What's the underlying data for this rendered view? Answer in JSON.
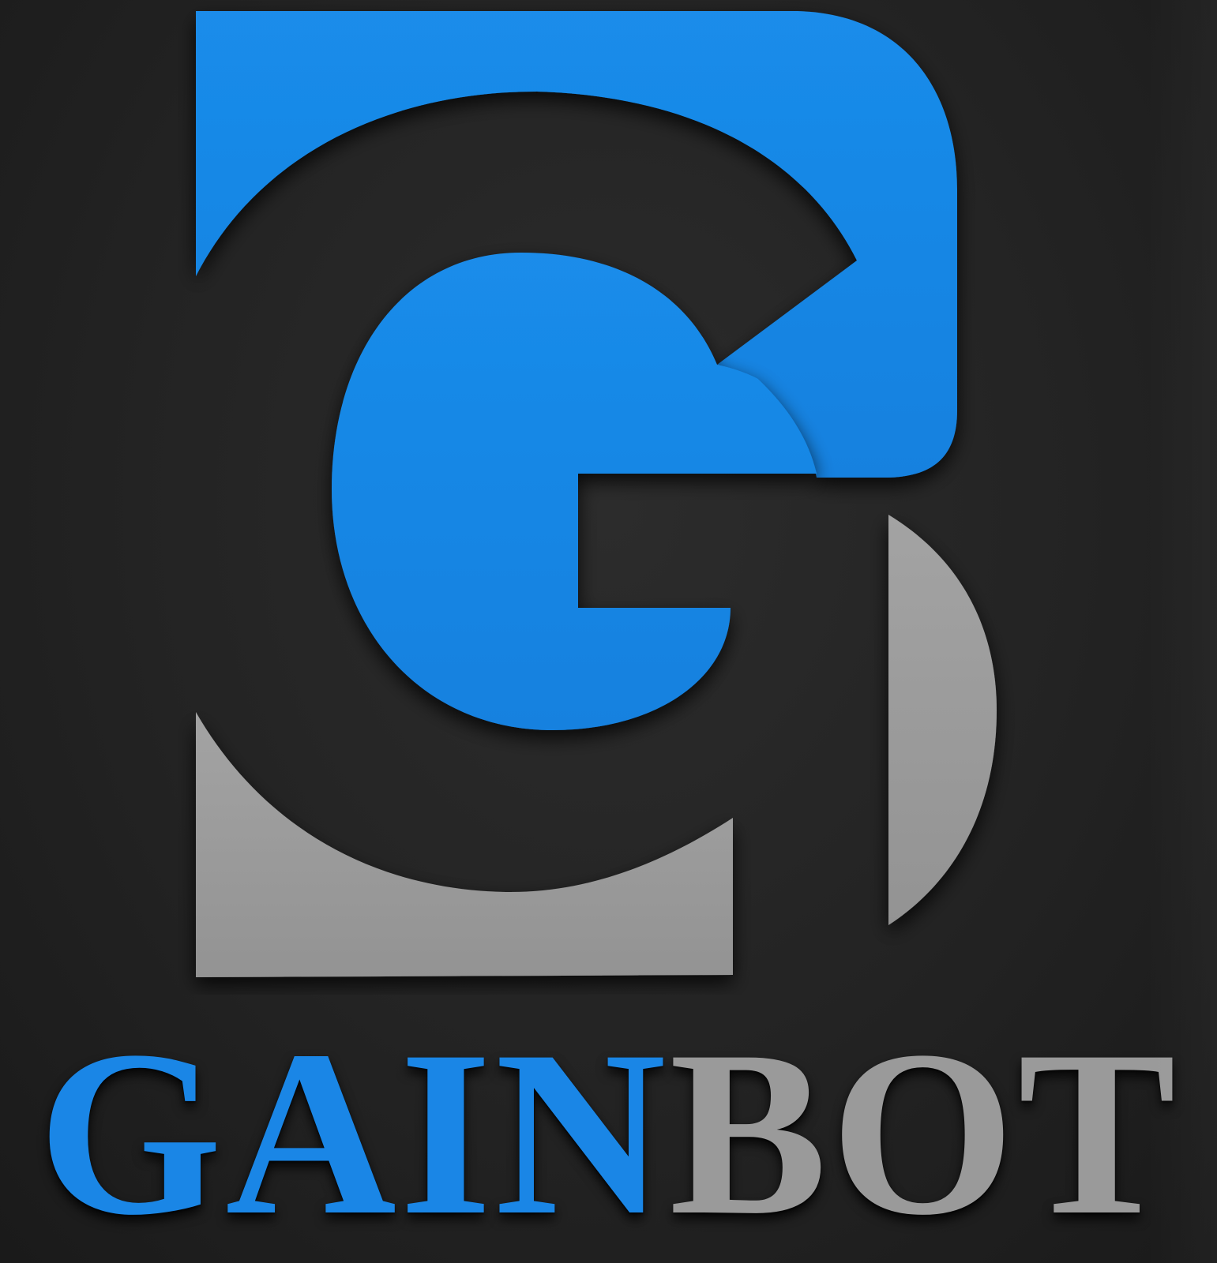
{
  "logo": {
    "wordmark_part_1": "GAIN",
    "wordmark_part_2": "BOT",
    "colors": {
      "background": "#232323",
      "blue": "#1a86e6",
      "gray": "#9a9a9a"
    }
  }
}
